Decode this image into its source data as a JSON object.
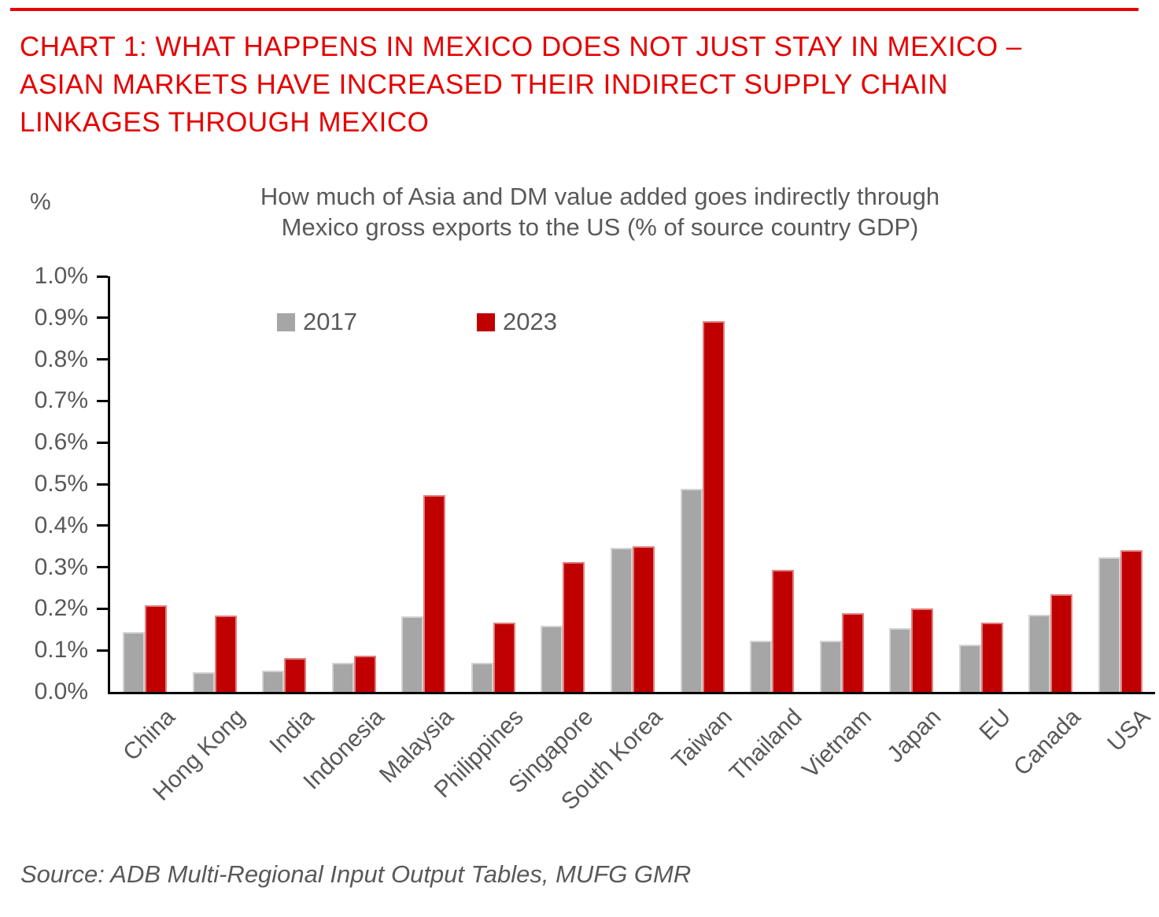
{
  "page": {
    "title_lines": [
      "CHART 1: WHAT HAPPENS IN MEXICO DOES NOT JUST STAY IN MEXICO –",
      "ASIAN MARKETS HAVE INCREASED THEIR INDIRECT SUPPLY CHAIN",
      "LINKAGES THROUGH MEXICO"
    ],
    "source_text": "Source: ADB Multi-Regional Input Output Tables, MUFG GMR"
  },
  "colors": {
    "title_red": "#e60000",
    "bar_gray": "#a6a6a6",
    "bar_red": "#c00000",
    "text_gray": "#595959",
    "axis_black": "#000000"
  },
  "chart_data": {
    "type": "bar",
    "title": "How much of Asia and DM value added goes indirectly through Mexico gross exports to the US (% of source country GDP)",
    "subtitle_lines": [
      "How much of Asia and DM value added goes indirectly through",
      "Mexico gross exports to the US (% of source country GDP)"
    ],
    "unit_label": "%",
    "categories": [
      "China",
      "Hong Kong",
      "India",
      "Indonesia",
      "Malaysia",
      "Philippines",
      "Singapore",
      "South Korea",
      "Taiwan",
      "Thailand",
      "Vietnam",
      "Japan",
      "EU",
      "Canada",
      "USA"
    ],
    "series": [
      {
        "name": "2017",
        "color": "#a6a6a6",
        "values": [
          0.144,
          0.047,
          0.051,
          0.07,
          0.182,
          0.07,
          0.159,
          0.347,
          0.488,
          0.124,
          0.124,
          0.154,
          0.114,
          0.186,
          0.323
        ]
      },
      {
        "name": "2023",
        "color": "#c00000",
        "values": [
          0.209,
          0.184,
          0.082,
          0.087,
          0.474,
          0.167,
          0.312,
          0.351,
          0.893,
          0.294,
          0.19,
          0.201,
          0.167,
          0.234,
          0.34
        ]
      }
    ],
    "ylim": [
      0.0,
      1.0
    ],
    "ytick_step": 0.1,
    "ytick_labels": [
      "0.0%",
      "0.1%",
      "0.2%",
      "0.3%",
      "0.4%",
      "0.5%",
      "0.6%",
      "0.7%",
      "0.8%",
      "0.9%",
      "1.0%"
    ],
    "grid": false,
    "legend_position": "top-inside",
    "xlabel": "",
    "ylabel": "%"
  }
}
